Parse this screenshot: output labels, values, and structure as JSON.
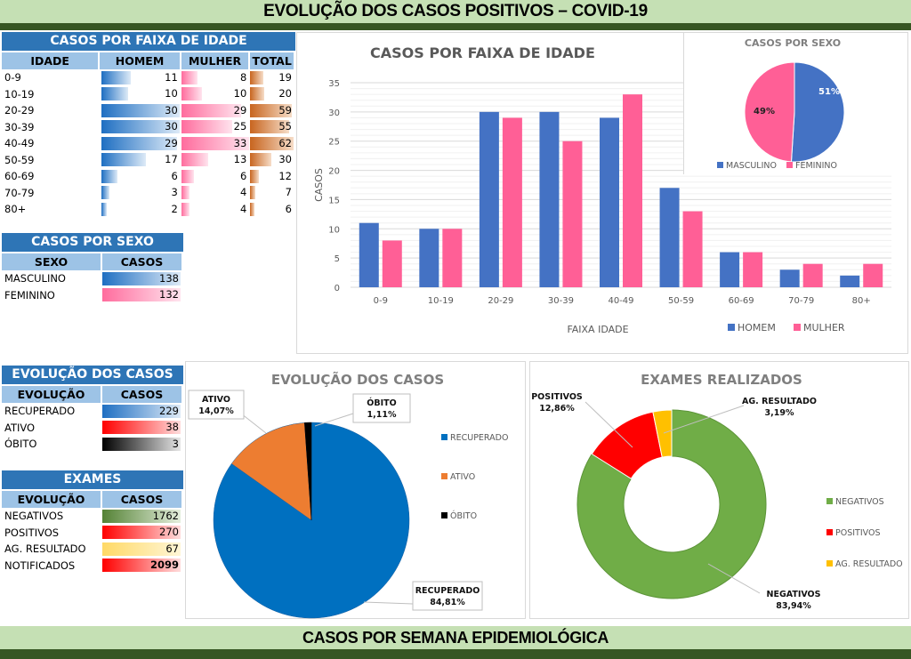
{
  "header": {
    "title": "EVOLUÇÃO DOS  CASOS POSITIVOS – COVID-19"
  },
  "footer": {
    "title": "CASOS POR SEMANA EPIDEMIOLÓGICA"
  },
  "colors": {
    "homem": "#4472c4",
    "mulher": "#ff5f96",
    "recuperado": "#0070c0",
    "ativo": "#ed7d31",
    "obito": "#000000",
    "negativos": "#70ad47",
    "positivos": "#ff0000",
    "ag_resultado": "#ffc000"
  },
  "age_table": {
    "title": "CASOS POR FAIXA DE IDADE",
    "headers": [
      "IDADE",
      "HOMEM",
      "MULHER",
      "TOTAL"
    ],
    "rows": [
      {
        "faixa": "0-9",
        "homem": 11,
        "mulher": 8,
        "total": 19
      },
      {
        "faixa": "10-19",
        "homem": 10,
        "mulher": 10,
        "total": 20
      },
      {
        "faixa": "20-29",
        "homem": 30,
        "mulher": 29,
        "total": 59
      },
      {
        "faixa": "30-39",
        "homem": 30,
        "mulher": 25,
        "total": 55
      },
      {
        "faixa": "40-49",
        "homem": 29,
        "mulher": 33,
        "total": 62
      },
      {
        "faixa": "50-59",
        "homem": 17,
        "mulher": 13,
        "total": 30
      },
      {
        "faixa": "60-69",
        "homem": 6,
        "mulher": 6,
        "total": 12
      },
      {
        "faixa": "70-79",
        "homem": 3,
        "mulher": 4,
        "total": 7
      },
      {
        "faixa": "80+",
        "homem": 2,
        "mulher": 4,
        "total": 6
      }
    ]
  },
  "sex_table": {
    "title": "CASOS POR SEXO",
    "headers": [
      "SEXO",
      "CASOS"
    ],
    "rows": [
      {
        "label": "MASCULINO",
        "value": 138,
        "style": "g-blue"
      },
      {
        "label": "FEMININO",
        "value": 132,
        "style": "g-pink"
      }
    ]
  },
  "evolution_table": {
    "title": "EVOLUÇÃO DOS CASOS",
    "headers": [
      "EVOLUÇÃO",
      "CASOS"
    ],
    "rows": [
      {
        "label": "RECUPERADO",
        "value": 229,
        "style": "g-blue"
      },
      {
        "label": "ATIVO",
        "value": 38,
        "style": "g-red"
      },
      {
        "label": "ÓBITO",
        "value": 3,
        "style": "g-black"
      }
    ]
  },
  "exams_table": {
    "title": "EXAMES",
    "headers": [
      "EVOLUÇÃO",
      "CASOS"
    ],
    "rows": [
      {
        "label": "NEGATIVOS",
        "value": 1762,
        "style": "g-green",
        "bold": false
      },
      {
        "label": "POSITIVOS",
        "value": 270,
        "style": "g-red",
        "bold": false
      },
      {
        "label": "AG. RESULTADO",
        "value": 67,
        "style": "g-yellow",
        "bold": false
      },
      {
        "label": "NOTIFICADOS",
        "value": 2099,
        "style": "g-red",
        "bold": true
      }
    ]
  },
  "chart_data": [
    {
      "type": "bar",
      "title": "CASOS POR FAIXA DE IDADE",
      "xlabel": "FAIXA IDADE",
      "ylabel": "CASOS",
      "categories": [
        "0-9",
        "10-19",
        "20-29",
        "30-39",
        "40-49",
        "50-59",
        "60-69",
        "70-79",
        "80+"
      ],
      "series": [
        {
          "name": "HOMEM",
          "values": [
            11,
            10,
            30,
            30,
            29,
            17,
            6,
            3,
            2
          ]
        },
        {
          "name": "MULHER",
          "values": [
            8,
            10,
            29,
            25,
            33,
            13,
            6,
            4,
            4
          ]
        }
      ],
      "ylim": [
        0,
        35
      ],
      "yticks": [
        0,
        5,
        10,
        15,
        20,
        25,
        30,
        35
      ],
      "grid": true,
      "legend": "bottom-right"
    },
    {
      "type": "pie",
      "title": "CASOS POR SEXO",
      "labels": [
        "MASCULINO",
        "FEMININO"
      ],
      "values": [
        51,
        49
      ],
      "data_labels": [
        "51%",
        "49%"
      ],
      "legend": "bottom"
    },
    {
      "type": "pie",
      "title": "EVOLUÇÃO DOS CASOS",
      "labels": [
        "RECUPERADO",
        "ATIVO",
        "ÓBITO"
      ],
      "values": [
        84.81,
        14.07,
        1.11
      ],
      "data_labels": [
        "84,81%",
        "14,07%",
        "1,11%"
      ],
      "legend": "right"
    },
    {
      "type": "pie",
      "subtype": "donut",
      "title": "EXAMES REALIZADOS",
      "labels": [
        "NEGATIVOS",
        "POSITIVOS",
        "AG. RESULTADO"
      ],
      "values": [
        83.94,
        12.86,
        3.19
      ],
      "data_labels": [
        "83,94%",
        "12,86%",
        "3,19%"
      ],
      "legend": "right"
    }
  ]
}
